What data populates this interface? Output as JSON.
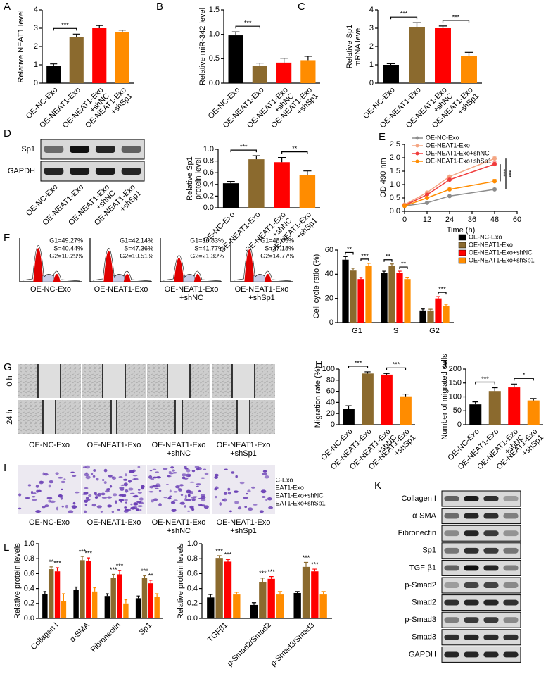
{
  "chart_data": [
    {
      "panel": "A",
      "type": "bar",
      "ylabel": "Relative NEAT1 level",
      "categories": [
        "OE-NC-Exo",
        "OE-NEAT1-Exo",
        "OE-NEAT1-Exo\n+shNC",
        "OE-NEAT1-Exo\n+shSp1"
      ],
      "values": [
        0.95,
        2.5,
        3.0,
        2.78
      ],
      "errors": [
        0.1,
        0.18,
        0.15,
        0.12
      ],
      "colors": [
        "#000000",
        "#8b6a2e",
        "#ff0000",
        "#ff8c00"
      ],
      "ylim": [
        0,
        4
      ],
      "yticks": [
        0,
        1,
        2,
        3,
        4
      ],
      "brackets": [
        {
          "label": "***",
          "from": 0,
          "to": 1
        }
      ]
    },
    {
      "panel": "B",
      "type": "bar",
      "ylabel": "Relative miR-342 level",
      "categories": [
        "OE-NC-Exo",
        "OE-NEAT1-Exo",
        "OE-NEAT1-Exo\n+shNC",
        "OE-NEAT1-Exo\n+shSp1"
      ],
      "values": [
        0.98,
        0.35,
        0.42,
        0.47
      ],
      "errors": [
        0.07,
        0.06,
        0.09,
        0.08
      ],
      "colors": [
        "#000000",
        "#8b6a2e",
        "#ff0000",
        "#ff8c00"
      ],
      "ylim": [
        0,
        1.5
      ],
      "yticks": [
        {
          "value": 0,
          "label": "0.0"
        },
        {
          "value": 0.5,
          "label": "0.5"
        },
        {
          "value": 1,
          "label": "1.0"
        },
        {
          "value": 1.5,
          "label": "1.5"
        }
      ],
      "brackets": [
        {
          "label": "***",
          "from": 0,
          "to": 1
        }
      ]
    },
    {
      "panel": "C",
      "type": "bar",
      "ylabel": "Relative Sp1\nmRNA level",
      "categories": [
        "OE-NC-Exo",
        "OE-NEAT1-Exo",
        "OE-NEAT1-Exo\n+shNC",
        "OE-NEAT1-Exo\n+shSp1"
      ],
      "values": [
        1.0,
        3.05,
        3.0,
        1.5
      ],
      "errors": [
        0.06,
        0.25,
        0.12,
        0.18
      ],
      "colors": [
        "#000000",
        "#8b6a2e",
        "#ff0000",
        "#ff8c00"
      ],
      "ylim": [
        0,
        4
      ],
      "yticks": [
        0,
        1,
        2,
        3,
        4
      ],
      "brackets": [
        {
          "label": "***",
          "from": 0,
          "to": 1
        },
        {
          "label": "***",
          "from": 2,
          "to": 3
        }
      ]
    },
    {
      "type": "bar",
      "ylabel": "Relative Sp1\nprotein level",
      "categories": [
        "OE-NC-Exo",
        "OE-NEAT1-Exo",
        "OE-NEAT1-Exo\n+shNC",
        "OE-NEAT1-Exo\n+shSp1"
      ],
      "values": [
        0.42,
        0.83,
        0.78,
        0.56
      ],
      "errors": [
        0.03,
        0.06,
        0.08,
        0.07
      ],
      "colors": [
        "#000000",
        "#8b6a2e",
        "#ff0000",
        "#ff8c00"
      ],
      "ylim": [
        0,
        1
      ],
      "yticks": [
        {
          "value": 0,
          "label": "0.0"
        },
        {
          "value": 0.2,
          "label": "0.2"
        },
        {
          "value": 0.4,
          "label": "0.4"
        },
        {
          "value": 0.6,
          "label": "0.6"
        },
        {
          "value": 0.8,
          "label": "0.8"
        },
        {
          "value": 1,
          "label": "1.0"
        }
      ],
      "brackets": [
        {
          "label": "***",
          "from": 0,
          "to": 1
        },
        {
          "label": "**",
          "from": 2,
          "to": 3
        }
      ]
    },
    {
      "panel": "E",
      "type": "line",
      "ylabel": "OD 490 nm",
      "xlabel": "Time (h)",
      "x": [
        0,
        12,
        24,
        48
      ],
      "xlim": [
        0,
        60
      ],
      "xticks": [
        0,
        12,
        24,
        36,
        48,
        60
      ],
      "ylim": [
        0,
        2.5
      ],
      "yticks": [
        {
          "value": 0,
          "label": "0.0"
        },
        {
          "value": 0.5,
          "label": "0.5"
        },
        {
          "value": 1,
          "label": "1.0"
        },
        {
          "value": 1.5,
          "label": "1.5"
        },
        {
          "value": 2,
          "label": "2.0"
        },
        {
          "value": 2.5,
          "label": "2.5"
        }
      ],
      "legend": "upper left",
      "series": [
        {
          "name": "OE-NC-Exo",
          "color": "#8c8c8c",
          "values": [
            0.2,
            0.32,
            0.57,
            0.82
          ],
          "errors": [
            0.02,
            0.03,
            0.03,
            0.04
          ]
        },
        {
          "name": "OE-NEAT1-Exo",
          "color": "#f4a582",
          "values": [
            0.25,
            0.7,
            1.3,
            1.97
          ],
          "errors": [
            0.02,
            0.04,
            0.05,
            0.06
          ]
        },
        {
          "name": "OE-NEAT1-Exo+shNC",
          "color": "#f03c3c",
          "values": [
            0.22,
            0.62,
            1.18,
            1.76
          ],
          "errors": [
            0.02,
            0.04,
            0.05,
            0.08
          ]
        },
        {
          "name": "OE-NEAT1-Exo+shSp1",
          "color": "#ff8c00",
          "values": [
            0.2,
            0.5,
            0.82,
            1.12
          ],
          "errors": [
            0.02,
            0.03,
            0.05,
            0.07
          ]
        }
      ],
      "brackets": [
        {
          "label": "***",
          "from": 2,
          "to": 3
        },
        {
          "label": "***",
          "from": 1,
          "to": 0
        }
      ]
    },
    {
      "type": "grouped_bar",
      "ylabel": "Cell cycle ratio (%)",
      "categories": [
        "G1",
        "S",
        "G2"
      ],
      "ylim": [
        0,
        60
      ],
      "yticks": [
        0,
        20,
        40,
        60
      ],
      "legend": "right",
      "series": [
        {
          "name": "OE-NC-Exo",
          "color": "#000000",
          "values": [
            52,
            41,
            10
          ],
          "errors": [
            2.5,
            1.5,
            1.2
          ]
        },
        {
          "name": "OE-NEAT1-Exo",
          "color": "#8b6a2e",
          "values": [
            43,
            47,
            10
          ],
          "errors": [
            2,
            1.5,
            1
          ]
        },
        {
          "name": "OE-NEAT1-Exo+shNC",
          "color": "#ff0000",
          "values": [
            36,
            41,
            20
          ],
          "errors": [
            1.5,
            1.5,
            1.5
          ]
        },
        {
          "name": "OE-NEAT1-Exo+shSp1",
          "color": "#ff8c00",
          "values": [
            47,
            36,
            14
          ],
          "errors": [
            2,
            1,
            1.2
          ]
        }
      ],
      "brackets": [
        {
          "label": "**",
          "category": 0,
          "from": 0,
          "to": 1
        },
        {
          "label": "***",
          "category": 0,
          "from": 2,
          "to": 3
        },
        {
          "label": "**",
          "category": 1,
          "from": 0,
          "to": 1
        },
        {
          "label": "**",
          "category": 1,
          "from": 2,
          "to": 3
        },
        {
          "label": "***",
          "category": 2,
          "from": 2,
          "to": 3
        }
      ]
    },
    {
      "panel": "H",
      "type": "bar",
      "ylabel": "Migration rate (%)",
      "categories": [
        "OE-NC-Exo",
        "OE-NEAT1-Exo",
        "OE-NEAT1-Exo\n+shNC",
        "OE-NEAT1-Exo\n+shSp1"
      ],
      "values": [
        28,
        92,
        90,
        51
      ],
      "errors": [
        6,
        3,
        2,
        4
      ],
      "colors": [
        "#000000",
        "#8b6a2e",
        "#ff0000",
        "#ff8c00"
      ],
      "ylim": [
        0,
        100
      ],
      "yticks": [
        0,
        20,
        40,
        60,
        80,
        100
      ],
      "brackets": [
        {
          "label": "***",
          "from": 0,
          "to": 1
        },
        {
          "label": "***",
          "from": 2,
          "to": 3
        }
      ]
    },
    {
      "panel": "J",
      "type": "bar",
      "ylabel": "Number of migrated cells",
      "categories": [
        "OE-NC-Exo",
        "OE-NEAT1-Exo",
        "OE-NEAT1-Exo\n+shNC",
        "OE-NEAT1-Exo\n+shSp1"
      ],
      "values": [
        73,
        121,
        134,
        87
      ],
      "errors": [
        9,
        12,
        12,
        7
      ],
      "colors": [
        "#000000",
        "#8b6a2e",
        "#ff0000",
        "#ff8c00"
      ],
      "ylim": [
        0,
        200
      ],
      "yticks": [
        0,
        50,
        100,
        150,
        200
      ],
      "brackets": [
        {
          "label": "***",
          "from": 0,
          "to": 1
        },
        {
          "label": "*",
          "from": 2,
          "to": 3
        }
      ]
    },
    {
      "panel": "L",
      "type": "grouped_bar",
      "ylabel": "Relative protein levels",
      "categories": [
        "Collagen I",
        "α-SMA",
        "Fibronectin",
        "Sp1"
      ],
      "ylim": [
        0,
        1
      ],
      "yticks": [
        {
          "value": 0,
          "label": "0.0"
        },
        {
          "value": 0.2,
          "label": "0.2"
        },
        {
          "value": 0.4,
          "label": "0.4"
        },
        {
          "value": 0.6,
          "label": "0.6"
        },
        {
          "value": 0.8,
          "label": "0.8"
        },
        {
          "value": 1,
          "label": "1.0"
        }
      ],
      "legend": "above",
      "series": [
        {
          "name": "OE-NC-Exo",
          "color": "#000000",
          "values": [
            0.33,
            0.38,
            0.3,
            0.27
          ],
          "errors": [
            0.03,
            0.04,
            0.03,
            0.03
          ]
        },
        {
          "name": "OE-NEAT1-Exo",
          "color": "#8b6a2e",
          "values": [
            0.66,
            0.78,
            0.54,
            0.54
          ],
          "errors": [
            0.03,
            0.05,
            0.05,
            0.03
          ]
        },
        {
          "name": "OE-NEAT1-Exo+shNC",
          "color": "#ff0000",
          "values": [
            0.63,
            0.77,
            0.59,
            0.47
          ],
          "errors": [
            0.05,
            0.04,
            0.05,
            0.04
          ]
        },
        {
          "name": "OE-NEAT1-Exo+shSp1",
          "color": "#ff8c00",
          "values": [
            0.23,
            0.36,
            0.2,
            0.29
          ],
          "errors": [
            0.1,
            0.05,
            0.05,
            0.04
          ]
        }
      ],
      "annotations": [
        {
          "label": "**",
          "category": 0,
          "series": 1
        },
        {
          "label": "***",
          "category": 0,
          "series": 2
        },
        {
          "label": "***",
          "category": 1,
          "series": 1
        },
        {
          "label": "***",
          "category": 1,
          "series": 2
        },
        {
          "label": "***",
          "category": 2,
          "series": 1
        },
        {
          "label": "***",
          "category": 2,
          "series": 2
        },
        {
          "label": "***",
          "category": 3,
          "series": 1
        },
        {
          "label": "**",
          "category": 3,
          "series": 2
        }
      ]
    },
    {
      "type": "grouped_bar",
      "ylabel": "Relative protein levels",
      "categories": [
        "TGFβ1",
        "p-Smad2/Smad2",
        "p-Smad3/Smad3"
      ],
      "ylim": [
        0,
        1
      ],
      "yticks": [
        {
          "value": 0,
          "label": "0.0"
        },
        {
          "value": 0.2,
          "label": "0.2"
        },
        {
          "value": 0.4,
          "label": "0.4"
        },
        {
          "value": 0.6,
          "label": "0.6"
        },
        {
          "value": 0.8,
          "label": "0.8"
        },
        {
          "value": 1,
          "label": "1.0"
        }
      ],
      "series": [
        {
          "name": "OE-NC-Exo",
          "color": "#000000",
          "values": [
            0.28,
            0.18,
            0.34
          ],
          "errors": [
            0.04,
            0.03,
            0.02
          ]
        },
        {
          "name": "OE-NEAT1-Exo",
          "color": "#8b6a2e",
          "values": [
            0.81,
            0.49,
            0.69
          ],
          "errors": [
            0.03,
            0.05,
            0.06
          ]
        },
        {
          "name": "OE-NEAT1-Exo+shNC",
          "color": "#ff0000",
          "values": [
            0.76,
            0.53,
            0.63
          ],
          "errors": [
            0.03,
            0.03,
            0.03
          ]
        },
        {
          "name": "OE-NEAT1-Exo+shSp1",
          "color": "#ff8c00",
          "values": [
            0.32,
            0.32,
            0.32
          ],
          "errors": [
            0.03,
            0.04,
            0.04
          ]
        }
      ],
      "annotations": [
        {
          "label": "***",
          "category": 0,
          "series": 1
        },
        {
          "label": "***",
          "category": 0,
          "series": 2
        },
        {
          "label": "***",
          "category": 1,
          "series": 1
        },
        {
          "label": "***",
          "category": 1,
          "series": 2
        },
        {
          "label": "***",
          "category": 2,
          "series": 1
        },
        {
          "label": "***",
          "category": 2,
          "series": 2
        }
      ]
    }
  ],
  "blot_d": {
    "panel": "D",
    "rows": [
      "Sp1",
      "GAPDH"
    ],
    "lanes": [
      "OE-NC-Exo",
      "OE-NEAT1-Exo",
      "OE-NEAT1-Exo\n+shNC",
      "OE-NEAT1-Exo\n+shSp1"
    ]
  },
  "flow": {
    "panel": "F",
    "samples": [
      {
        "label": "OE-NC-Exo",
        "stats": [
          "G1=49.27%",
          "S=40.44%",
          "G2=10.29%"
        ]
      },
      {
        "label": "OE-NEAT1-Exo",
        "stats": [
          "G1=42.14%",
          "S=47.36%",
          "G2=10.51%"
        ]
      },
      {
        "label": "OE-NEAT1-Exo\n+shNC",
        "stats": [
          "G1=36.83%",
          "S=41.77%",
          "G2=21.39%"
        ]
      },
      {
        "label": "OE-NEAT1-Exo\n+shSp1",
        "stats": [
          "G1=48.05%",
          "S=37.18%",
          "G2=14.77%"
        ]
      }
    ]
  },
  "wound": {
    "panel": "G",
    "rows": [
      "0 h",
      "24 h"
    ],
    "columns": [
      "OE-NC-Exo",
      "OE-NEAT1-Exo",
      "OE-NEAT1-Exo\n+shNC",
      "OE-NEAT1-Exo\n+shSp1"
    ]
  },
  "transwell": {
    "panel": "I",
    "columns": [
      "OE-NC-Exo",
      "OE-NEAT1-Exo",
      "OE-NEAT1-Exo\n+shNC",
      "OE-NEAT1-Exo\n+shSp1"
    ]
  },
  "blot_k": {
    "panel": "K",
    "rows": [
      "Collagen I",
      "α-SMA",
      "Fibronectin",
      "Sp1",
      "TGF-β1",
      "p-Smad2",
      "Smad2",
      "p-Smad3",
      "Smad3",
      "GAPDH"
    ]
  }
}
